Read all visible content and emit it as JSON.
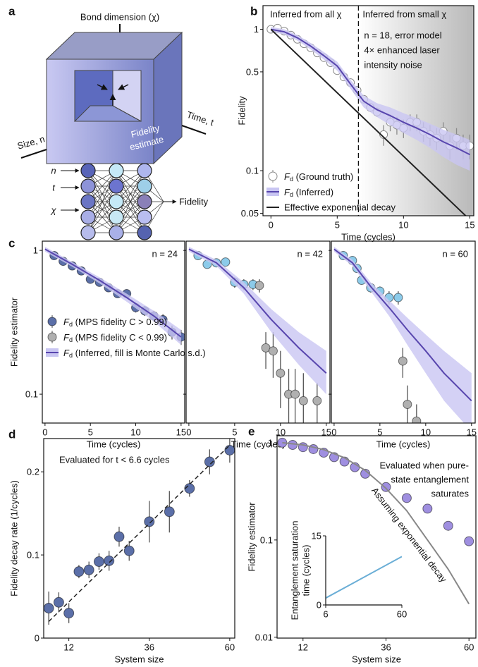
{
  "diagram": {
    "label": "a",
    "bond": "Bond dimension (χ)",
    "size": "Size, n",
    "time": "Time, t",
    "estimate": [
      "Fidelity",
      "estimate"
    ],
    "inputs": [
      "n",
      "t",
      "χ"
    ],
    "output": "Fidelity"
  },
  "chart_data": [
    {
      "type": "line",
      "panel": "b",
      "xlabel": "Time (cycles)",
      "ylabel": "Fidelity",
      "log_y": true,
      "xlim": [
        -0.6,
        15.3
      ],
      "ylim": [
        0.048,
        1.47
      ],
      "xticks": [
        0,
        5,
        10,
        15
      ],
      "yticks": [
        0.05,
        0.1,
        0.5,
        1
      ],
      "divider_x": 6.6,
      "left_header": "Inferred from all χ",
      "right_header": "Inferred from small χ",
      "notes": [
        "n = 18, error model",
        "4× enhanced laser",
        "intensity noise"
      ],
      "legend": "lower left",
      "series": [
        {
          "name": "Fd (Ground truth)",
          "style": "markers",
          "color": "#ffffff",
          "stroke": "#8a8a8a",
          "x": [
            0,
            0.5,
            1,
            1.5,
            2,
            2.5,
            3,
            3.5,
            4,
            4.5,
            5,
            5.5,
            6,
            6.5,
            7,
            7.5,
            8,
            8.5,
            9,
            9.5,
            10,
            10.5,
            11,
            11.5,
            12,
            12.5,
            13,
            13.5,
            14,
            14.5,
            15
          ],
          "values": [
            1.0,
            1.02,
            0.97,
            0.91,
            0.85,
            0.79,
            0.74,
            0.68,
            0.63,
            0.58,
            0.51,
            0.46,
            0.42,
            0.37,
            0.32,
            0.28,
            0.26,
            0.18,
            0.22,
            0.21,
            0.2,
            0.22,
            0.22,
            0.19,
            0.18,
            0.17,
            0.19,
            0.15,
            0.17,
            0.15,
            0.15
          ],
          "errors": [
            0.01,
            0.01,
            0.01,
            0.01,
            0.01,
            0.01,
            0.01,
            0.01,
            0.01,
            0.01,
            0.01,
            0.01,
            0.01,
            0.01,
            0.01,
            0.02,
            0.02,
            0.03,
            0.03,
            0.03,
            0.03,
            0.03,
            0.03,
            0.03,
            0.03,
            0.03,
            0.03,
            0.03,
            0.03,
            0.03,
            0.03
          ]
        },
        {
          "name": "Fd (Inferred)",
          "style": "line",
          "color": "#5846ae",
          "band_color": "#c9c6f2",
          "x": [
            0,
            1,
            2,
            3,
            4,
            5,
            6,
            7,
            8,
            9,
            10,
            11,
            12,
            13,
            14,
            15
          ],
          "values": [
            1.0,
            0.96,
            0.87,
            0.76,
            0.65,
            0.55,
            0.41,
            0.31,
            0.27,
            0.245,
            0.22,
            0.2,
            0.18,
            0.16,
            0.145,
            0.13
          ],
          "lower": [
            0.96,
            0.92,
            0.83,
            0.72,
            0.61,
            0.51,
            0.38,
            0.28,
            0.24,
            0.21,
            0.185,
            0.165,
            0.145,
            0.125,
            0.11,
            0.1
          ],
          "upper": [
            1.04,
            1.0,
            0.91,
            0.8,
            0.69,
            0.59,
            0.44,
            0.34,
            0.3,
            0.28,
            0.255,
            0.235,
            0.215,
            0.195,
            0.18,
            0.165
          ]
        },
        {
          "name": "Effective exponential decay",
          "style": "line",
          "color": "#222222",
          "x": [
            0,
            15
          ],
          "values": [
            1,
            0.045
          ]
        }
      ]
    },
    {
      "type": "line",
      "panel": "c",
      "xlabel": "Time (cycles)",
      "ylabel": "Fidelity estimator",
      "log_y": true,
      "xlim": [
        -0.3,
        15.4
      ],
      "ylim": [
        0.063,
        1.16
      ],
      "xticks": [
        0,
        5,
        10,
        15
      ],
      "yticks": [
        0.1,
        1
      ],
      "note": "n = 24",
      "legend": "lower left",
      "series": [
        {
          "name": "Fd (MPS fidelity C > 0.99)",
          "style": "markers",
          "color": "#5b6fa8",
          "x": [
            1,
            2,
            3,
            4,
            5,
            6,
            7,
            8,
            9,
            10,
            11,
            12,
            13,
            14,
            15
          ],
          "values": [
            0.92,
            0.84,
            0.78,
            0.72,
            0.63,
            0.6,
            0.55,
            0.5,
            0.5,
            0.4,
            0.38,
            0.35,
            0.33,
            0.27,
            0.25
          ],
          "errors": [
            0.02,
            0.02,
            0.02,
            0.02,
            0.02,
            0.02,
            0.02,
            0.02,
            0.03,
            0.03,
            0.03,
            0.03,
            0.03,
            0.03,
            0.03
          ]
        },
        {
          "name": "Fd (Inferred, fill is Monte Carlo s.d.)",
          "style": "line",
          "color": "#5846ae",
          "band_color": "#c9c6f2",
          "x": [
            0,
            3,
            6,
            9,
            12,
            15
          ],
          "values": [
            1.02,
            0.8,
            0.62,
            0.47,
            0.35,
            0.25
          ],
          "lower": [
            0.98,
            0.77,
            0.59,
            0.44,
            0.32,
            0.22
          ],
          "upper": [
            1.06,
            0.83,
            0.65,
            0.5,
            0.38,
            0.28
          ]
        }
      ]
    },
    {
      "type": "line",
      "xlabel": "Time (cycles)",
      "log_y": true,
      "xlim": [
        -0.3,
        15.4
      ],
      "ylim": [
        0.063,
        1.16
      ],
      "xticks": [
        0,
        5,
        10,
        15
      ],
      "yticks": [
        0.1,
        1
      ],
      "note": "n = 42",
      "series": [
        {
          "style": "markers",
          "color": "#8ccbea",
          "x": [
            1,
            2,
            3,
            4,
            5,
            6,
            7
          ],
          "values": [
            0.92,
            0.8,
            0.82,
            0.83,
            0.6,
            0.58,
            0.58
          ],
          "errors": [
            0.04,
            0.04,
            0.04,
            0.04,
            0.05,
            0.05,
            0.05
          ]
        },
        {
          "name": "Fd (MPS fidelity C < 0.99)",
          "style": "markers",
          "color": "#b0b0b0",
          "x": [
            7.7,
            8.4,
            9.2,
            10,
            10.9,
            11.6,
            12.5,
            14
          ],
          "values": [
            0.57,
            0.21,
            0.2,
            0.14,
            0.1,
            0.1,
            0.09,
            0.09
          ],
          "errors": [
            0.06,
            0.06,
            0.07,
            0.06,
            0.05,
            0.05,
            0.05,
            0.03
          ]
        },
        {
          "style": "line",
          "color": "#5846ae",
          "band_color": "#c9c6f2",
          "x": [
            0,
            3,
            6,
            9,
            12,
            15
          ],
          "values": [
            1.02,
            0.82,
            0.55,
            0.33,
            0.21,
            0.14
          ],
          "lower": [
            0.98,
            0.78,
            0.5,
            0.27,
            0.16,
            0.1
          ],
          "upper": [
            1.06,
            0.86,
            0.6,
            0.39,
            0.27,
            0.2
          ]
        }
      ]
    },
    {
      "type": "line",
      "xlabel": "Time (cycles)",
      "log_y": true,
      "xlim": [
        -0.3,
        15.4
      ],
      "ylim": [
        0.063,
        1.16
      ],
      "xticks": [
        0,
        5,
        10,
        15
      ],
      "yticks": [
        0.1,
        1
      ],
      "note": "n = 60",
      "series": [
        {
          "style": "markers",
          "color": "#8ccbea",
          "x": [
            1,
            2,
            2.5,
            3,
            4,
            5,
            6,
            7
          ],
          "values": [
            0.92,
            0.85,
            0.75,
            0.62,
            0.55,
            0.52,
            0.47,
            0.47
          ],
          "errors": [
            0.04,
            0.04,
            0.04,
            0.04,
            0.04,
            0.04,
            0.05,
            0.05
          ]
        },
        {
          "style": "markers",
          "color": "#b0b0b0",
          "x": [
            7.5,
            8,
            9
          ],
          "values": [
            0.17,
            0.085,
            0.065
          ],
          "errors": [
            0.04,
            0.03,
            0.02
          ]
        },
        {
          "style": "line",
          "color": "#5846ae",
          "band_color": "#c9c6f2",
          "x": [
            0,
            2,
            4,
            6,
            8,
            10,
            12,
            15
          ],
          "values": [
            1.02,
            0.82,
            0.56,
            0.4,
            0.28,
            0.2,
            0.14,
            0.09
          ],
          "lower": [
            0.98,
            0.78,
            0.52,
            0.35,
            0.22,
            0.14,
            0.09,
            0.055
          ],
          "upper": [
            1.06,
            0.86,
            0.6,
            0.45,
            0.34,
            0.26,
            0.2,
            0.14
          ]
        }
      ]
    },
    {
      "type": "scatter",
      "panel": "d",
      "xlabel": "System size",
      "ylabel": "Fidelity decay rate (1/cycles)",
      "note": "Evaluated for t < 6.6 cycles",
      "xlim": [
        4.5,
        61.5
      ],
      "ylim": [
        0,
        0.24
      ],
      "xticks": [
        12,
        36,
        60
      ],
      "yticks": [
        0,
        0.1,
        0.2
      ],
      "series": [
        {
          "style": "markers",
          "color": "#5b6fa8",
          "x": [
            6,
            9,
            12,
            15,
            18,
            21,
            24,
            27,
            30,
            36,
            42,
            48,
            54,
            60
          ],
          "values": [
            0.036,
            0.043,
            0.03,
            0.08,
            0.082,
            0.092,
            0.093,
            0.122,
            0.105,
            0.14,
            0.152,
            0.18,
            0.212,
            0.226
          ],
          "errors": [
            0.02,
            0.012,
            0.012,
            0.008,
            0.01,
            0.01,
            0.012,
            0.012,
            0.012,
            0.025,
            0.025,
            0.01,
            0.015,
            0.015
          ]
        },
        {
          "style": "dashed",
          "color": "#222222",
          "x": [
            6,
            60
          ],
          "values": [
            0.02,
            0.232
          ]
        }
      ]
    },
    {
      "type": "scatter",
      "panel": "e",
      "xlabel": "System size",
      "ylabel": "Fidelity estimator",
      "log_y": true,
      "note": [
        "Evaluated when pure-",
        "state entanglement",
        "saturates"
      ],
      "xlim": [
        4.5,
        62
      ],
      "ylim": [
        0.0098,
        1.18
      ],
      "xticks": [
        12,
        36,
        60
      ],
      "yticks": [
        0.01,
        0.1,
        1
      ],
      "series": [
        {
          "style": "markers",
          "color": "#9f8fe0",
          "x": [
            6,
            9,
            12,
            15,
            18,
            21,
            24,
            27,
            30,
            36,
            42,
            48,
            54,
            60
          ],
          "values": [
            1.0,
            0.95,
            0.9,
            0.86,
            0.79,
            0.71,
            0.64,
            0.56,
            0.48,
            0.35,
            0.27,
            0.21,
            0.14,
            0.097
          ],
          "errors": [
            0.02,
            0.02,
            0.02,
            0.02,
            0.02,
            0.02,
            0.02,
            0.02,
            0.02,
            0.02,
            0.02,
            0.02,
            0.015,
            0.01
          ]
        },
        {
          "name": "Assuming exponential decay",
          "style": "line",
          "color": "#888888",
          "x": [
            6,
            12,
            18,
            24,
            30,
            36,
            42,
            48,
            54,
            60
          ],
          "values": [
            1,
            0.95,
            0.85,
            0.7,
            0.52,
            0.34,
            0.2,
            0.1,
            0.05,
            0.022
          ]
        }
      ]
    },
    {
      "type": "line",
      "ylabel": [
        "Entanglement saturation",
        "time (cycles)"
      ],
      "xlim": [
        6,
        60
      ],
      "ylim": [
        0,
        15
      ],
      "xticks": [
        6,
        60
      ],
      "yticks": [
        0,
        15
      ],
      "series": [
        {
          "style": "line",
          "color": "#6aaed6",
          "x": [
            6,
            60
          ],
          "values": [
            1.5,
            10.5
          ]
        }
      ]
    }
  ]
}
